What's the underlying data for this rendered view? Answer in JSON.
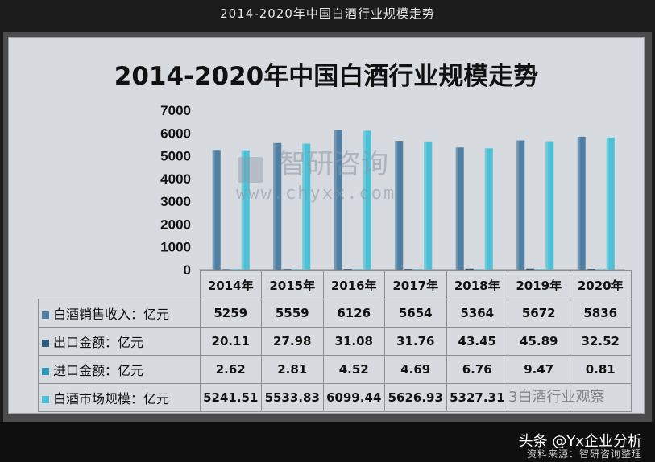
{
  "caption": "2014-2020年中国白酒行业规模走势",
  "chart_data": {
    "type": "bar",
    "title": "2014-2020年中国白酒行业规模走势",
    "categories": [
      "2014年",
      "2015年",
      "2016年",
      "2017年",
      "2018年",
      "2019年",
      "2020年"
    ],
    "ylim": [
      0,
      7000
    ],
    "yticks": [
      0,
      1000,
      2000,
      3000,
      4000,
      5000,
      6000,
      7000
    ],
    "grid": false,
    "legend": "table-below",
    "series": [
      {
        "name": "白酒销售收入：亿元",
        "values": [
          5259,
          5559,
          6126,
          5654,
          5364,
          5672,
          5836
        ],
        "color": "#4f7fa2",
        "labels": [
          "5259",
          "5559",
          "6126",
          "5654",
          "5364",
          "5672",
          "5836"
        ]
      },
      {
        "name": "出口金额：亿元",
        "values": [
          20.11,
          27.98,
          31.08,
          31.76,
          43.45,
          45.89,
          32.52
        ],
        "color": "#2f5c7e",
        "labels": [
          "20.11",
          "27.98",
          "31.08",
          "31.76",
          "43.45",
          "45.89",
          "32.52"
        ]
      },
      {
        "name": "进口金额：亿元",
        "values": [
          2.62,
          2.81,
          4.52,
          4.69,
          6.76,
          9.47,
          0.81
        ],
        "color": "#2d9ab6",
        "labels": [
          "2.62",
          "2.81",
          "4.52",
          "4.69",
          "6.76",
          "9.47",
          "0.81"
        ]
      },
      {
        "name": "白酒市场规模：亿元",
        "values": [
          5241.51,
          5533.83,
          6099.44,
          5626.93,
          5327.31,
          5635.8,
          5804.29
        ],
        "color": "#4ec0d6",
        "labels": [
          "5241.51",
          "5533.83",
          "6099.44",
          "5626.93",
          "5327.31",
          "",
          ""
        ]
      }
    ]
  },
  "watermark": {
    "cn": "智研咨询",
    "url": "www.chyxx.com",
    "overlay": "3白酒行业观察"
  },
  "footer": {
    "credit": "头条 @Yx企业分析",
    "source": "资料来源：智研咨询整理"
  }
}
